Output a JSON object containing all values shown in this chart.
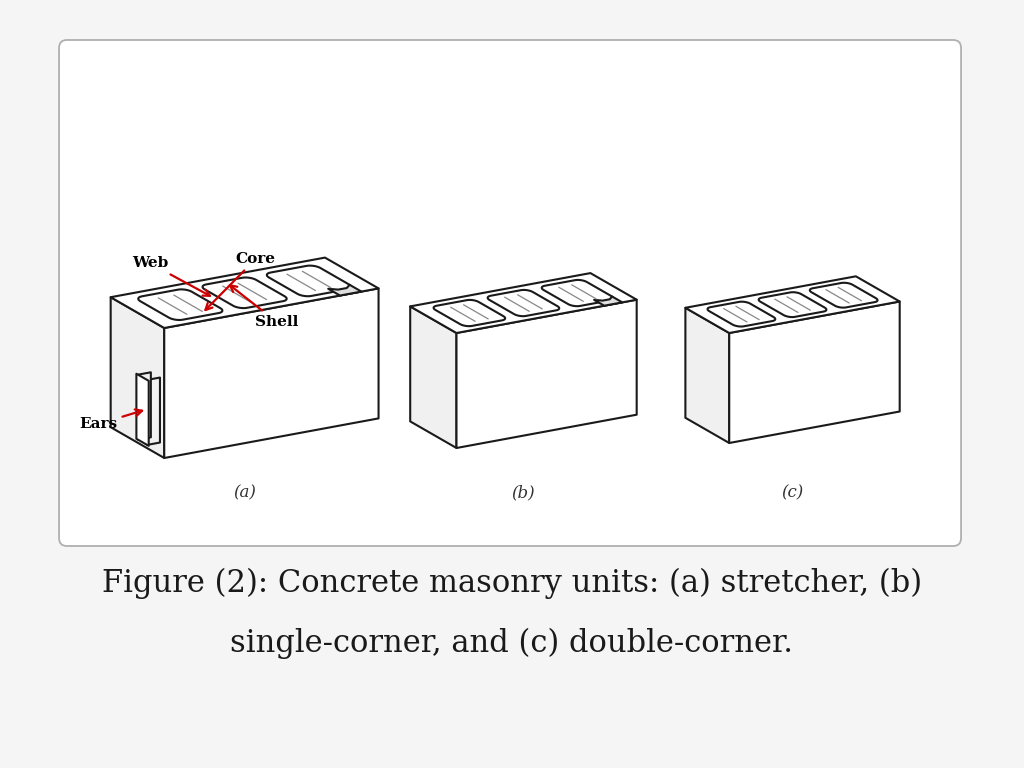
{
  "bg_color": "#f5f5f5",
  "box_bg": "#ffffff",
  "box_edge": "#b0b0b0",
  "line_color": "#1a1a1a",
  "arrow_color": "#cc0000",
  "face_white": "#ffffff",
  "face_light": "#f0f0f0",
  "face_mid": "#e0e0e0",
  "hole_fill": "#d8d8d8",
  "figure_size": [
    10.24,
    7.68
  ],
  "dpi": 100,
  "caption_line1": "Figure (2): Concrete masonry units: (a) stretcher, (b)",
  "caption_line2": "single-corner, and (c) double-corner.",
  "caption_fontsize": 22,
  "label_a": "(a)",
  "label_b": "(b)",
  "label_c": "(c)",
  "label_fontsize": 12,
  "annotation_fontsize": 11
}
